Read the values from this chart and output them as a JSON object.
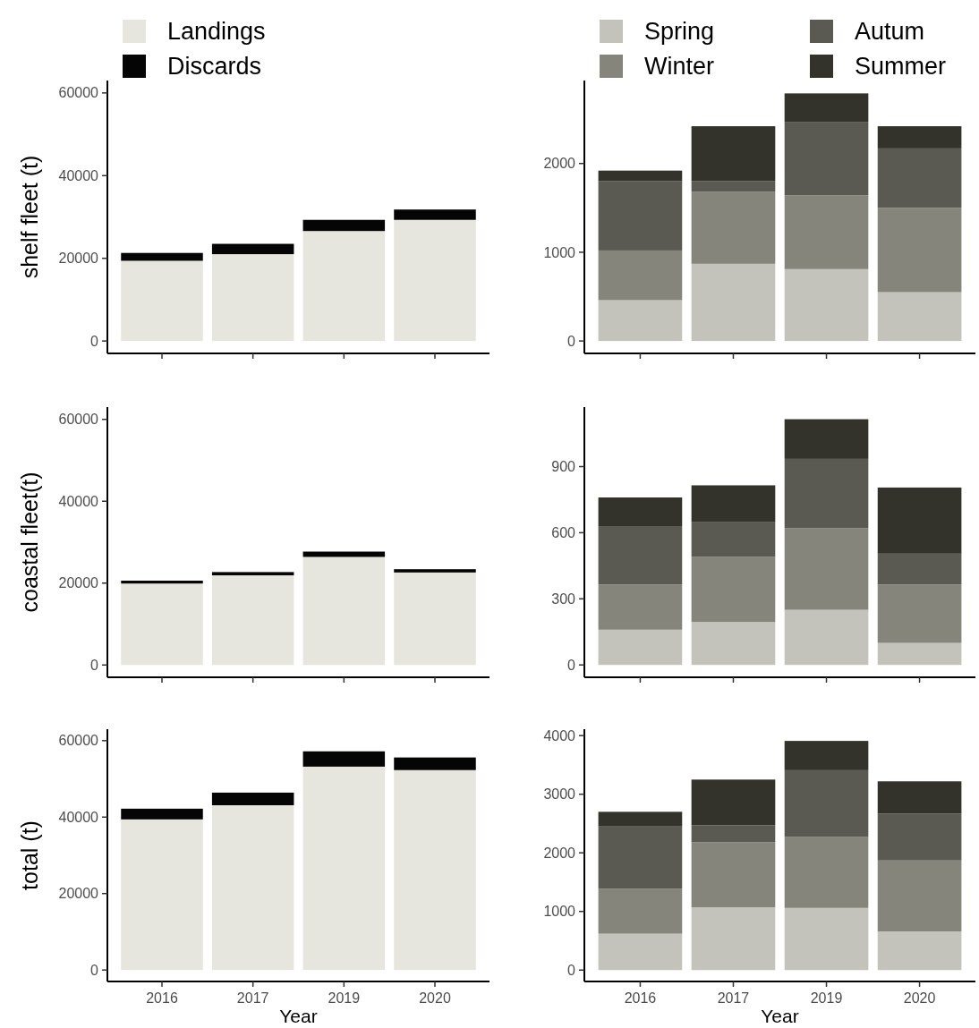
{
  "chart_data": [
    {
      "type": "bar",
      "stacked": true,
      "legend": "top",
      "ylabel": "shelf fleet (t)",
      "categories": [
        "2016",
        "2017",
        "2019",
        "2020"
      ],
      "ylim": [
        -3000,
        63000
      ],
      "yticks": [
        0,
        20000,
        40000,
        60000
      ],
      "tick_labels": "y",
      "series": [
        {
          "name": "Landings",
          "color": "#e6e6df",
          "values": [
            19400,
            21000,
            26600,
            29300
          ]
        },
        {
          "name": "Discards",
          "color": "#050505",
          "values": [
            1900,
            2500,
            2700,
            2500
          ]
        }
      ]
    },
    {
      "type": "bar",
      "stacked": true,
      "legend": "top",
      "categories": [
        "2016",
        "2017",
        "2019",
        "2020"
      ],
      "ylim": [
        -140,
        2935
      ],
      "yticks": [
        0,
        1000,
        2000
      ],
      "tick_labels": "y",
      "series": [
        {
          "name": "Spring",
          "color": "#c3c3bb",
          "values": [
            460,
            870,
            810,
            550
          ]
        },
        {
          "name": "Winter",
          "color": "#85857c",
          "values": [
            560,
            810,
            830,
            950
          ]
        },
        {
          "name": "Autum",
          "color": "#5a5a52",
          "values": [
            780,
            120,
            830,
            670
          ]
        },
        {
          "name": "Summer",
          "color": "#33332b",
          "values": [
            120,
            620,
            320,
            250
          ]
        }
      ]
    },
    {
      "type": "bar",
      "stacked": true,
      "ylabel": "coastal fleet(t)",
      "categories": [
        "2016",
        "2017",
        "2019",
        "2020"
      ],
      "ylim": [
        -3000,
        63000
      ],
      "yticks": [
        0,
        20000,
        40000,
        60000
      ],
      "tick_labels": "y",
      "series": [
        {
          "color": "#e6e6df",
          "values": [
            19900,
            21900,
            26400,
            22600
          ]
        },
        {
          "color": "#050505",
          "values": [
            700,
            800,
            1300,
            800
          ]
        }
      ]
    },
    {
      "type": "bar",
      "stacked": true,
      "categories": [
        "2016",
        "2017",
        "2019",
        "2020"
      ],
      "ylim": [
        -56,
        1170
      ],
      "yticks": [
        0,
        300,
        600,
        900
      ],
      "tick_labels": "y",
      "series": [
        {
          "color": "#c3c3bb",
          "values": [
            160,
            195,
            250,
            100
          ]
        },
        {
          "color": "#85857c",
          "values": [
            205,
            295,
            370,
            265
          ]
        },
        {
          "color": "#5a5a52",
          "values": [
            265,
            160,
            315,
            140
          ]
        },
        {
          "color": "#33332b",
          "values": [
            130,
            165,
            180,
            300
          ]
        }
      ]
    },
    {
      "type": "bar",
      "stacked": true,
      "ylabel": "total (t)",
      "xlabel": "Year",
      "categories": [
        "2016",
        "2017",
        "2019",
        "2020"
      ],
      "ylim": [
        -3000,
        63000
      ],
      "yticks": [
        0,
        20000,
        40000,
        60000
      ],
      "series": [
        {
          "color": "#e6e6df",
          "values": [
            39400,
            43100,
            53200,
            52300
          ]
        },
        {
          "color": "#050505",
          "values": [
            2800,
            3300,
            4000,
            3300
          ]
        }
      ]
    },
    {
      "type": "bar",
      "stacked": true,
      "xlabel": "Year",
      "categories": [
        "2016",
        "2017",
        "2019",
        "2020"
      ],
      "ylim": [
        -195,
        4110
      ],
      "yticks": [
        0,
        1000,
        2000,
        3000,
        4000
      ],
      "series": [
        {
          "color": "#c3c3bb",
          "values": [
            620,
            1070,
            1060,
            660
          ]
        },
        {
          "color": "#85857c",
          "values": [
            770,
            1110,
            1210,
            1210
          ]
        },
        {
          "color": "#5a5a52",
          "values": [
            1060,
            290,
            1140,
            800
          ]
        },
        {
          "color": "#33332b",
          "values": [
            250,
            780,
            500,
            550
          ]
        }
      ]
    }
  ]
}
